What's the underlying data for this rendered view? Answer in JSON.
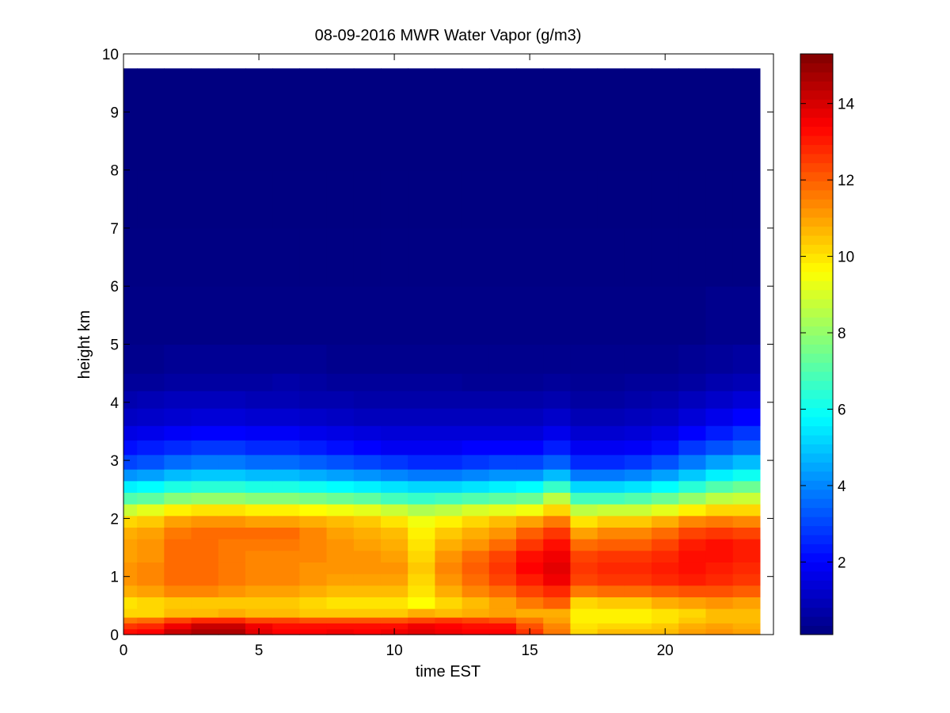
{
  "chart_data": {
    "type": "heatmap",
    "title": "08-09-2016 MWR Water Vapor (g/m3)",
    "xlabel": "time EST",
    "ylabel": "height km",
    "xlim": [
      0,
      24
    ],
    "ylim": [
      0,
      10
    ],
    "x_ticks": [
      0,
      5,
      10,
      15,
      20
    ],
    "y_ticks": [
      0,
      1,
      2,
      3,
      4,
      5,
      6,
      7,
      8,
      9,
      10
    ],
    "data_extent": {
      "x": [
        0,
        23.5
      ],
      "y": [
        0,
        9.75
      ]
    },
    "colormap": "jet",
    "colorbar": {
      "min": 0.1,
      "max": 15.3,
      "ticks": [
        2,
        4,
        6,
        8,
        10,
        12,
        14
      ]
    },
    "x_bin_edges": [
      0,
      0.5,
      1.5,
      2.5,
      3.5,
      4.5,
      5.5,
      6.5,
      7.5,
      8.5,
      9.5,
      10.5,
      11.5,
      12.5,
      13.5,
      14.5,
      15.5,
      16.5,
      17.5,
      18.5,
      19.5,
      20.5,
      21.5,
      22.5,
      23.5
    ],
    "y_bin_edges": [
      0,
      0.1,
      0.2,
      0.3,
      0.45,
      0.65,
      0.85,
      1.05,
      1.25,
      1.45,
      1.65,
      1.85,
      2.05,
      2.25,
      2.45,
      2.65,
      2.85,
      3.1,
      3.35,
      3.6,
      3.9,
      4.2,
      4.5,
      5,
      6,
      7,
      8,
      9,
      9.75
    ],
    "z_rows": [
      [
        13.2,
        13.4,
        14.2,
        14.6,
        14.6,
        13.8,
        13.4,
        13.4,
        13.6,
        13.4,
        13.6,
        13.8,
        13.6,
        13.4,
        13.4,
        12.6,
        11.6,
        10.2,
        10.6,
        10.6,
        10.6,
        11.0,
        11.2,
        11.0
      ],
      [
        12.6,
        12.8,
        13.6,
        14.2,
        14.2,
        13.6,
        13.2,
        13.2,
        13.2,
        13.2,
        13.2,
        13.6,
        13.4,
        13.2,
        13.2,
        12.2,
        11.4,
        10.0,
        10.2,
        10.2,
        10.4,
        10.8,
        11.0,
        10.8
      ],
      [
        11.6,
        11.8,
        12.4,
        12.8,
        12.8,
        12.4,
        12.4,
        12.2,
        12.2,
        12.2,
        12.2,
        12.4,
        12.6,
        12.4,
        12.2,
        11.6,
        11.0,
        9.8,
        9.8,
        9.8,
        10.0,
        10.4,
        10.6,
        10.6
      ],
      [
        10.2,
        10.2,
        10.6,
        10.6,
        10.8,
        10.6,
        10.6,
        10.4,
        10.4,
        10.4,
        10.4,
        10.8,
        10.6,
        10.8,
        11.0,
        10.8,
        10.8,
        9.8,
        9.8,
        9.8,
        10.0,
        10.2,
        10.6,
        10.6
      ],
      [
        10.0,
        10.2,
        10.4,
        10.4,
        10.4,
        10.4,
        10.4,
        10.2,
        10.0,
        10.0,
        10.0,
        9.6,
        10.2,
        10.6,
        11.0,
        11.6,
        12.0,
        10.2,
        10.4,
        10.4,
        10.8,
        11.0,
        11.2,
        11.0
      ],
      [
        10.8,
        11.0,
        11.4,
        11.4,
        11.2,
        11.0,
        11.0,
        10.8,
        10.6,
        10.6,
        10.6,
        10.0,
        10.8,
        11.4,
        11.8,
        12.4,
        12.8,
        11.6,
        11.8,
        11.8,
        12.0,
        12.2,
        12.2,
        12.0
      ],
      [
        11.2,
        11.4,
        11.8,
        11.8,
        11.6,
        11.4,
        11.4,
        11.2,
        11.0,
        11.0,
        11.0,
        10.2,
        11.2,
        11.8,
        12.4,
        13.0,
        13.6,
        12.4,
        12.6,
        12.6,
        12.8,
        13.0,
        12.8,
        12.6
      ],
      [
        11.2,
        11.4,
        11.8,
        11.8,
        11.6,
        11.4,
        11.4,
        11.2,
        11.2,
        11.2,
        11.2,
        10.4,
        11.4,
        12.0,
        12.6,
        13.4,
        13.8,
        12.6,
        12.8,
        12.8,
        13.0,
        13.2,
        13.0,
        12.8
      ],
      [
        11.0,
        11.2,
        11.8,
        11.8,
        11.6,
        11.4,
        11.4,
        11.4,
        11.2,
        11.2,
        11.0,
        10.2,
        11.2,
        11.8,
        12.4,
        13.2,
        13.6,
        12.4,
        12.6,
        12.6,
        12.8,
        13.2,
        13.2,
        13.0
      ],
      [
        11.0,
        11.2,
        11.8,
        11.8,
        11.6,
        11.6,
        11.6,
        11.4,
        11.2,
        11.0,
        10.8,
        10.0,
        10.8,
        11.2,
        11.8,
        12.6,
        13.2,
        11.8,
        12.0,
        12.0,
        12.4,
        13.0,
        13.2,
        13.0
      ],
      [
        10.8,
        11.0,
        11.6,
        11.8,
        11.8,
        11.8,
        11.8,
        11.4,
        11.0,
        10.8,
        10.6,
        9.8,
        10.4,
        10.8,
        11.2,
        12.0,
        12.6,
        11.0,
        11.4,
        11.4,
        11.8,
        12.4,
        12.6,
        12.4
      ],
      [
        10.2,
        10.4,
        11.0,
        11.2,
        11.2,
        11.0,
        11.0,
        10.8,
        10.6,
        10.4,
        10.0,
        9.4,
        9.8,
        10.2,
        10.6,
        11.0,
        11.6,
        10.0,
        10.4,
        10.4,
        10.8,
        11.4,
        11.6,
        11.4
      ],
      [
        8.8,
        9.2,
        9.8,
        10.0,
        10.0,
        9.8,
        9.8,
        9.6,
        9.4,
        9.2,
        8.8,
        8.4,
        8.6,
        9.0,
        9.2,
        9.4,
        10.2,
        8.6,
        8.8,
        8.8,
        9.2,
        9.8,
        10.2,
        10.2
      ],
      [
        7.0,
        7.2,
        7.8,
        8.0,
        8.0,
        7.8,
        7.8,
        7.6,
        7.4,
        7.2,
        6.8,
        6.6,
        6.8,
        7.0,
        7.2,
        7.4,
        8.6,
        6.8,
        6.8,
        7.0,
        7.4,
        8.0,
        8.6,
        8.8
      ],
      [
        5.6,
        5.8,
        6.2,
        6.4,
        6.4,
        6.2,
        6.2,
        6.0,
        5.8,
        5.6,
        5.4,
        5.2,
        5.2,
        5.4,
        5.6,
        5.8,
        6.6,
        5.2,
        5.2,
        5.4,
        5.8,
        6.4,
        7.0,
        7.4
      ],
      [
        4.2,
        4.4,
        4.8,
        5.0,
        5.0,
        4.8,
        4.8,
        4.6,
        4.4,
        4.2,
        4.0,
        3.8,
        3.8,
        4.0,
        4.2,
        4.2,
        4.8,
        3.8,
        3.8,
        4.0,
        4.4,
        5.0,
        5.6,
        6.0
      ],
      [
        3.0,
        3.2,
        3.6,
        3.8,
        3.8,
        3.6,
        3.6,
        3.4,
        3.2,
        3.0,
        2.8,
        2.6,
        2.6,
        2.8,
        3.0,
        3.0,
        3.4,
        2.6,
        2.6,
        2.8,
        3.2,
        3.8,
        4.4,
        4.8
      ],
      [
        2.2,
        2.4,
        2.6,
        2.8,
        2.8,
        2.6,
        2.6,
        2.4,
        2.2,
        2.0,
        1.8,
        1.8,
        1.8,
        2.0,
        2.0,
        2.0,
        2.4,
        1.8,
        1.8,
        1.9,
        2.2,
        2.8,
        3.2,
        3.6
      ],
      [
        1.6,
        1.7,
        1.9,
        2.0,
        2.0,
        1.9,
        1.9,
        1.7,
        1.6,
        1.5,
        1.4,
        1.4,
        1.4,
        1.4,
        1.4,
        1.4,
        1.7,
        1.3,
        1.3,
        1.4,
        1.6,
        2.0,
        2.4,
        2.8
      ],
      [
        1.1,
        1.2,
        1.3,
        1.4,
        1.4,
        1.3,
        1.3,
        1.2,
        1.1,
        1.0,
        1.0,
        1.0,
        1.0,
        1.0,
        1.0,
        1.0,
        1.2,
        0.9,
        0.9,
        1.0,
        1.1,
        1.4,
        1.7,
        2.0
      ],
      [
        0.8,
        0.9,
        1.0,
        1.0,
        1.0,
        0.9,
        0.9,
        0.8,
        0.8,
        0.7,
        0.7,
        0.7,
        0.7,
        0.7,
        0.7,
        0.7,
        0.8,
        0.6,
        0.6,
        0.7,
        0.8,
        1.0,
        1.2,
        1.4
      ],
      [
        0.5,
        0.5,
        0.6,
        0.6,
        0.6,
        0.6,
        0.7,
        0.6,
        0.5,
        0.5,
        0.5,
        0.5,
        0.5,
        0.4,
        0.4,
        0.4,
        0.5,
        0.4,
        0.4,
        0.5,
        0.5,
        0.6,
        0.8,
        0.9
      ],
      [
        0.3,
        0.3,
        0.4,
        0.4,
        0.4,
        0.4,
        0.4,
        0.4,
        0.3,
        0.3,
        0.3,
        0.3,
        0.3,
        0.3,
        0.3,
        0.3,
        0.3,
        0.3,
        0.3,
        0.3,
        0.3,
        0.4,
        0.5,
        0.6
      ],
      [
        0.2,
        0.2,
        0.2,
        0.2,
        0.2,
        0.2,
        0.2,
        0.2,
        0.2,
        0.2,
        0.2,
        0.2,
        0.2,
        0.2,
        0.2,
        0.2,
        0.2,
        0.2,
        0.2,
        0.2,
        0.2,
        0.2,
        0.3,
        0.3
      ],
      [
        0.15,
        0.15,
        0.15,
        0.15,
        0.15,
        0.15,
        0.15,
        0.15,
        0.15,
        0.15,
        0.15,
        0.15,
        0.15,
        0.15,
        0.15,
        0.15,
        0.15,
        0.15,
        0.15,
        0.15,
        0.15,
        0.15,
        0.15,
        0.15
      ],
      [
        0.12,
        0.12,
        0.12,
        0.12,
        0.12,
        0.12,
        0.12,
        0.12,
        0.12,
        0.12,
        0.12,
        0.12,
        0.12,
        0.12,
        0.12,
        0.12,
        0.12,
        0.12,
        0.12,
        0.12,
        0.12,
        0.12,
        0.12,
        0.12
      ],
      [
        0.1,
        0.1,
        0.1,
        0.1,
        0.1,
        0.1,
        0.1,
        0.1,
        0.1,
        0.1,
        0.1,
        0.1,
        0.1,
        0.1,
        0.1,
        0.1,
        0.1,
        0.1,
        0.1,
        0.1,
        0.1,
        0.1,
        0.1,
        0.1
      ],
      [
        0.1,
        0.1,
        0.1,
        0.1,
        0.1,
        0.1,
        0.1,
        0.1,
        0.1,
        0.1,
        0.1,
        0.1,
        0.1,
        0.1,
        0.1,
        0.1,
        0.1,
        0.1,
        0.1,
        0.1,
        0.1,
        0.1,
        0.1,
        0.1
      ]
    ]
  }
}
